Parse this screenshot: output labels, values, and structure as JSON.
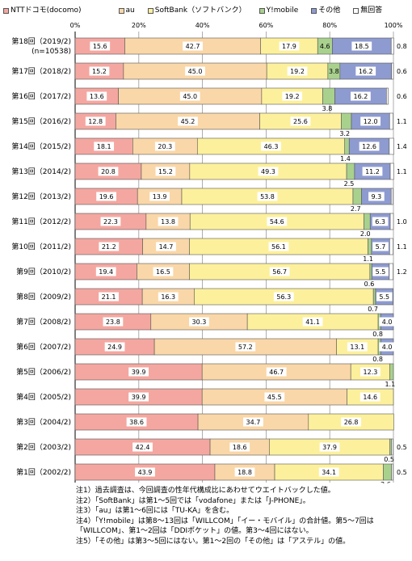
{
  "colors": {
    "docomo": "#F4A7A0",
    "au": "#FAD7A8",
    "softbank": "#FDF09C",
    "ymobile": "#A9D18E",
    "other": "#8E9BD0",
    "noanswer": "#FFFFFF"
  },
  "chart_data": {
    "type": "bar",
    "orientation": "horizontal",
    "stacked": true,
    "xlim": [
      0,
      100
    ],
    "xticks": [
      "0%",
      "20%",
      "40%",
      "60%",
      "80%",
      "100%"
    ],
    "grid": true,
    "legend_position": "top",
    "categories": [
      {
        "name": "第18回（2019/2)",
        "sub": "(n=10538)"
      },
      {
        "name": "第17回（2018/2)",
        "sub": ""
      },
      {
        "name": "第16回（2017/2)",
        "sub": ""
      },
      {
        "name": "第15回（2016/2)",
        "sub": ""
      },
      {
        "name": "第14回（2015/2)",
        "sub": ""
      },
      {
        "name": "第13回（2014/2)",
        "sub": ""
      },
      {
        "name": "第12回（2013/2)",
        "sub": ""
      },
      {
        "name": "第11回（2012/2)",
        "sub": ""
      },
      {
        "name": "第10回（2011/2)",
        "sub": ""
      },
      {
        "name": "第9回（2010/2)",
        "sub": ""
      },
      {
        "name": "第8回（2009/2)",
        "sub": ""
      },
      {
        "name": "第7回（2008/2)",
        "sub": ""
      },
      {
        "name": "第6回（2007/2)",
        "sub": ""
      },
      {
        "name": "第5回（2006/2)",
        "sub": ""
      },
      {
        "name": "第4回（2005/2)",
        "sub": ""
      },
      {
        "name": "第3回（2004/2)",
        "sub": ""
      },
      {
        "name": "第2回（2003/2)",
        "sub": ""
      },
      {
        "name": "第1回（2002/2)",
        "sub": ""
      }
    ],
    "series": [
      {
        "name": "NTTドコモ(docomo)",
        "key": "docomo",
        "values": [
          15.6,
          15.2,
          13.6,
          12.8,
          18.1,
          20.8,
          19.6,
          22.3,
          21.2,
          19.4,
          21.1,
          23.8,
          24.9,
          39.9,
          39.9,
          38.6,
          42.4,
          43.9
        ]
      },
      {
        "name": "au",
        "key": "au",
        "values": [
          42.7,
          45.0,
          45.0,
          45.2,
          20.3,
          15.2,
          13.9,
          13.8,
          14.7,
          16.5,
          16.3,
          30.3,
          57.2,
          46.7,
          45.5,
          34.7,
          18.6,
          18.8
        ]
      },
      {
        "name": "SoftBank（ソフトバンク）",
        "key": "softbank",
        "values": [
          17.9,
          19.2,
          19.2,
          25.6,
          46.3,
          49.3,
          53.8,
          54.6,
          56.1,
          56.7,
          56.3,
          41.1,
          13.1,
          12.3,
          14.6,
          26.8,
          37.9,
          34.1
        ]
      },
      {
        "name": "Y!mobile",
        "key": "ymobile",
        "values": [
          4.6,
          3.8,
          3.8,
          3.2,
          1.4,
          2.5,
          2.7,
          2.0,
          1.1,
          0.6,
          0.7,
          0.8,
          0.8,
          1.1,
          0,
          0,
          0.5,
          2.6
        ]
      },
      {
        "name": "その他",
        "key": "other",
        "values": [
          18.5,
          16.2,
          16.2,
          12.0,
          12.6,
          11.2,
          9.3,
          6.3,
          5.7,
          5.5,
          5.5,
          4.0,
          4.0,
          0,
          0,
          0,
          0,
          0
        ]
      },
      {
        "name": "無回答",
        "key": "noanswer",
        "values": [
          0.8,
          0.6,
          0.6,
          1.1,
          1.4,
          1.1,
          0.6,
          1.0,
          1.1,
          1.2,
          0,
          0,
          0,
          0,
          0,
          0,
          0.5,
          0.5
        ]
      }
    ],
    "label_rules": {
      "inside_min": 6,
      "ymobile_below_rows": [
        2,
        3,
        4,
        5,
        6,
        7,
        8,
        9,
        10,
        11,
        12,
        13,
        16,
        17
      ],
      "ymobile_inside_rows": [
        0,
        1
      ],
      "noanswer_right_rows": [
        0,
        1,
        2,
        3,
        4,
        5,
        7,
        8,
        9,
        16,
        17
      ],
      "noanswer_below_rows": []
    }
  },
  "notes": [
    "注1）過去調査は、今回調査の性年代構成比にあわせてウエイトバックした値。",
    "注2）「SoftBank」は第1～5回では「vodafone」または「J-PHONE」。",
    "注3）「au」は第1～6回には「TU-KA」を含む。",
    "注4）「Y!mobile」は第8～13回は「WILLCOM」「イー・モバイル」の合計値。第5～7回は",
    "「WILLCOM」、第1～2回は「DDIポケット」の値。第3～4回にはない。",
    "注5）「その他」は第3～5回にはない。第1～2回の「その他」は「アステル」の値。"
  ]
}
